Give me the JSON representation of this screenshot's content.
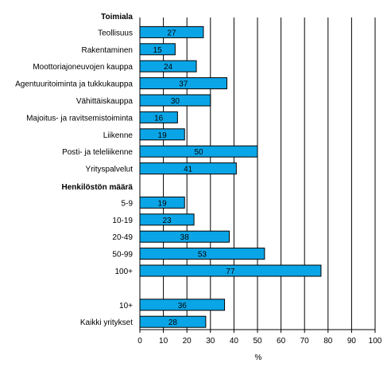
{
  "chart_data": {
    "type": "bar",
    "orientation": "horizontal",
    "xlabel": "%",
    "xlim": [
      0,
      100
    ],
    "xticks": [
      "0",
      "10",
      "20",
      "30",
      "40",
      "50",
      "60",
      "70",
      "80",
      "90",
      "100"
    ],
    "grid": "vertical",
    "bar_color": "#0aa5e6",
    "groups": [
      {
        "label": "Toimiala",
        "categories": [
          "Teollisuus",
          "Rakentaminen",
          "Moottoriajoneuvojen kauppa",
          "Agentuuritoiminta ja tukkukauppa",
          "Vähittäiskauppa",
          "Majoitus- ja ravitsemistoiminta",
          "Liikenne",
          "Posti- ja teleliikenne",
          "Yrityspalvelut"
        ],
        "values": [
          27,
          15,
          24,
          37,
          30,
          16,
          19,
          50,
          41
        ]
      },
      {
        "label": "Henkilöstön määrä",
        "categories": [
          "5-9",
          "10-19",
          "20-49",
          "50-99",
          "100+"
        ],
        "values": [
          19,
          23,
          38,
          53,
          77
        ]
      },
      {
        "label": "",
        "categories": [
          "10+",
          "Kaikki yritykset"
        ],
        "values": [
          36,
          28
        ]
      }
    ]
  }
}
